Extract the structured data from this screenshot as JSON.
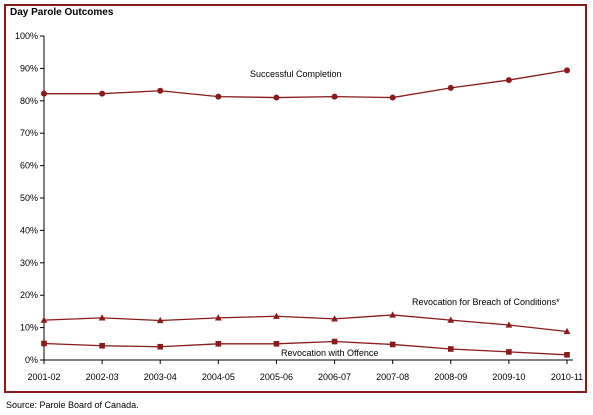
{
  "title": "Day Parole Outcomes",
  "source": "Source:  Parole Board of Canada.",
  "colors": {
    "frame": "#8b1a1a",
    "series": "#8b1a1a",
    "axis": "#000000"
  },
  "chart_data": {
    "type": "line",
    "title": "Day Parole Outcomes",
    "xlabel": "",
    "ylabel": "",
    "categories": [
      "2001-02",
      "2002-03",
      "2003-04",
      "2004-05",
      "2005-06",
      "2006-07",
      "2007-08",
      "2008-09",
      "2009-10",
      "2010-11"
    ],
    "ylim": [
      0,
      100
    ],
    "yticks": [
      "0%",
      "10%",
      "20%",
      "30%",
      "40%",
      "50%",
      "60%",
      "70%",
      "80%",
      "90%",
      "100%"
    ],
    "grid": false,
    "legend": "none (series labelled directly on chart)",
    "series": [
      {
        "name": "Successful Completion",
        "marker": "circle",
        "values": [
          82.2,
          82.2,
          83.1,
          81.3,
          81.0,
          81.3,
          81.0,
          84.0,
          86.4,
          89.4
        ]
      },
      {
        "name": "Revocation for Breach of Conditions*",
        "marker": "triangle",
        "values": [
          12.3,
          13.0,
          12.2,
          13.0,
          13.5,
          12.7,
          13.9,
          12.3,
          10.8,
          8.8
        ]
      },
      {
        "name": "Revocation with Offence",
        "marker": "square",
        "values": [
          5.1,
          4.4,
          4.1,
          5.0,
          5.0,
          5.7,
          4.8,
          3.4,
          2.5,
          1.6
        ]
      }
    ]
  }
}
